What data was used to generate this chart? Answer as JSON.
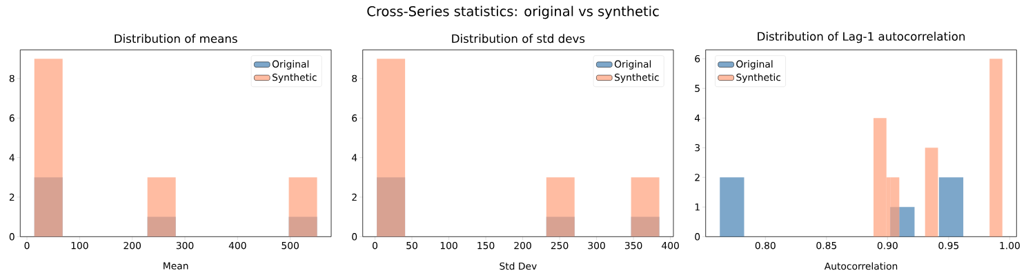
{
  "chart_data": [
    {
      "type": "histogram",
      "title": "Distribution of means",
      "xlabel": "Mean",
      "annotations": [
        "Cross-Series statistics: original vs synthetic"
      ],
      "bins": [
        14,
        67.7,
        121.4,
        175.1,
        228.8,
        282.5,
        336.2,
        389.9,
        443.6,
        497.3,
        551
      ],
      "series": [
        {
          "name": "Original",
          "color": "#4682b4",
          "values": [
            3,
            0,
            0,
            0,
            1,
            0,
            0,
            0,
            0,
            1
          ]
        },
        {
          "name": "Synthetic",
          "color": "#ffa07a",
          "values": [
            9,
            0,
            0,
            0,
            3,
            0,
            0,
            0,
            0,
            3
          ]
        }
      ],
      "xlim": [
        -12.8,
        577.8
      ],
      "ylim": [
        0,
        9.45
      ],
      "xticks": [
        {
          "value": 0,
          "label": "0"
        },
        {
          "value": 100,
          "label": "100"
        },
        {
          "value": 200,
          "label": "200"
        },
        {
          "value": 300,
          "label": "300"
        },
        {
          "value": 400,
          "label": "400"
        },
        {
          "value": 500,
          "label": "500"
        }
      ],
      "yticks": [
        {
          "value": 0,
          "label": "0"
        },
        {
          "value": 2,
          "label": "2"
        },
        {
          "value": 4,
          "label": "4"
        },
        {
          "value": 6,
          "label": "6"
        },
        {
          "value": 8,
          "label": "8"
        }
      ],
      "legend": "top right"
    },
    {
      "type": "histogram",
      "title": "Distribution of std devs",
      "xlabel": "Std Dev",
      "bins": [
        2.5,
        40.75,
        79,
        117.25,
        155.5,
        193.75,
        232,
        270.25,
        308.5,
        346.75,
        385
      ],
      "series": [
        {
          "name": "Original",
          "color": "#4682b4",
          "values": [
            3,
            0,
            0,
            0,
            0,
            0,
            1,
            0,
            0,
            1
          ]
        },
        {
          "name": "Synthetic",
          "color": "#ffa07a",
          "values": [
            9,
            0,
            0,
            0,
            0,
            0,
            3,
            0,
            0,
            3
          ]
        }
      ],
      "xlim": [
        -16.6,
        404.1
      ],
      "ylim": [
        0,
        9.45
      ],
      "xticks": [
        {
          "value": 0,
          "label": "0"
        },
        {
          "value": 50,
          "label": "50"
        },
        {
          "value": 100,
          "label": "100"
        },
        {
          "value": 150,
          "label": "150"
        },
        {
          "value": 200,
          "label": "200"
        },
        {
          "value": 250,
          "label": "250"
        },
        {
          "value": 300,
          "label": "300"
        },
        {
          "value": 350,
          "label": "350"
        },
        {
          "value": 400,
          "label": "400"
        }
      ],
      "yticks": [
        {
          "value": 0,
          "label": "0"
        },
        {
          "value": 2,
          "label": "2"
        },
        {
          "value": 4,
          "label": "4"
        },
        {
          "value": 6,
          "label": "6"
        },
        {
          "value": 8,
          "label": "8"
        }
      ],
      "legend": "top right"
    },
    {
      "type": "histogram",
      "title": "Distribution of Lag-1 autocorrelation",
      "xlabel": "Autocorrelation",
      "bins": [
        0.7627,
        0.7826,
        0.8885,
        0.8991,
        0.9022,
        0.9096,
        0.9221,
        0.9307,
        0.9413,
        0.9421,
        0.962,
        0.9835,
        0.994
      ],
      "series": [
        {
          "name": "Original",
          "color": "#4682b4",
          "values": [
            2,
            0,
            0,
            0,
            1,
            1,
            0,
            0,
            0,
            2,
            0,
            0
          ]
        },
        {
          "name": "Synthetic",
          "color": "#ffa07a",
          "values": [
            0,
            0,
            4,
            2,
            2,
            0,
            0,
            3,
            0,
            0,
            0,
            6
          ]
        }
      ],
      "xlim": [
        0.7511,
        1.0056
      ],
      "ylim": [
        0,
        6.3
      ],
      "xticks": [
        {
          "value": 0.8,
          "label": "0.80"
        },
        {
          "value": 0.85,
          "label": "0.85"
        },
        {
          "value": 0.9,
          "label": "0.90"
        },
        {
          "value": 0.95,
          "label": "0.95"
        },
        {
          "value": 1.0,
          "label": "1.00"
        }
      ],
      "yticks": [
        {
          "value": 0,
          "label": "0"
        },
        {
          "value": 1,
          "label": "1"
        },
        {
          "value": 2,
          "label": "2"
        },
        {
          "value": 3,
          "label": "3"
        },
        {
          "value": 4,
          "label": "4"
        },
        {
          "value": 5,
          "label": "5"
        },
        {
          "value": 6,
          "label": "6"
        }
      ],
      "legend": "top left"
    }
  ]
}
